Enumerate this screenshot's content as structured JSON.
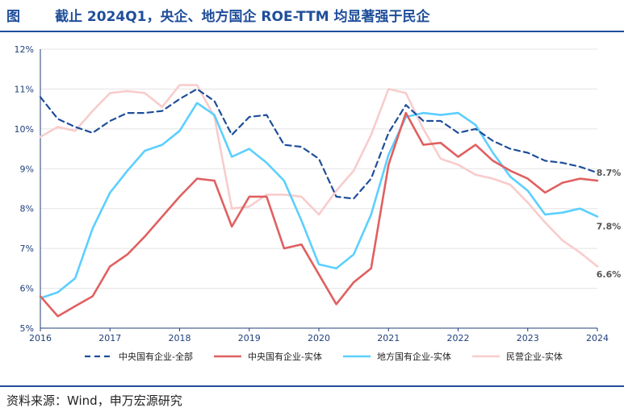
{
  "header": {
    "fig_label": "图",
    "title": "截止 2024Q1，央企、地方国企 ROE-TTM 均显著强于民企"
  },
  "footer": {
    "source": "资料来源：Wind，申万宏源研究"
  },
  "chart_data": {
    "type": "line",
    "title": "截止 2024Q1，央企、地方国企 ROE-TTM 均显著强于民企",
    "xlabel": "",
    "ylabel": "",
    "x_ticks": [
      "2016",
      "2017",
      "2018",
      "2019",
      "2020",
      "2021",
      "2022",
      "2023",
      "2024"
    ],
    "xlim": [
      2016.0,
      2024.0
    ],
    "ylim": [
      5,
      12
    ],
    "y_ticks": [
      "5%",
      "6%",
      "7%",
      "8%",
      "9%",
      "10%",
      "11%",
      "12%"
    ],
    "grid": "horizontal",
    "legend_position": "bottom",
    "series": [
      {
        "name": "中央国有企业-全部",
        "color": "#1f4e9a",
        "style": "dashed",
        "x": [
          2016.0,
          2016.25,
          2016.5,
          2016.75,
          2017.0,
          2017.25,
          2017.5,
          2017.75,
          2018.0,
          2018.25,
          2018.5,
          2018.75,
          2019.0,
          2019.25,
          2019.5,
          2019.75,
          2020.0,
          2020.25,
          2020.5,
          2020.75,
          2021.0,
          2021.25,
          2021.5,
          2021.75,
          2022.0,
          2022.25,
          2022.5,
          2022.75,
          2023.0,
          2023.25,
          2023.5,
          2023.75,
          2024.0
        ],
        "y": [
          10.8,
          10.25,
          10.05,
          9.9,
          10.2,
          10.4,
          10.4,
          10.45,
          10.75,
          11.0,
          10.7,
          9.85,
          10.3,
          10.35,
          9.6,
          9.55,
          9.25,
          8.3,
          8.25,
          8.75,
          9.9,
          10.6,
          10.2,
          10.2,
          9.9,
          10.0,
          9.7,
          9.5,
          9.4,
          9.2,
          9.15,
          9.05,
          8.9
        ]
      },
      {
        "name": "中央国有企业-实体",
        "color": "#e06060",
        "style": "solid",
        "x": [
          2016.0,
          2016.25,
          2016.5,
          2016.75,
          2017.0,
          2017.25,
          2017.5,
          2017.75,
          2018.0,
          2018.25,
          2018.5,
          2018.75,
          2019.0,
          2019.25,
          2019.5,
          2019.75,
          2020.0,
          2020.25,
          2020.5,
          2020.75,
          2021.0,
          2021.25,
          2021.5,
          2021.75,
          2022.0,
          2022.25,
          2022.5,
          2022.75,
          2023.0,
          2023.25,
          2023.5,
          2023.75,
          2024.0
        ],
        "y": [
          5.8,
          5.3,
          5.55,
          5.8,
          6.55,
          6.85,
          7.3,
          7.8,
          8.3,
          8.75,
          8.7,
          7.55,
          8.3,
          8.3,
          7.0,
          7.1,
          6.35,
          5.6,
          6.15,
          6.5,
          9.1,
          10.4,
          9.6,
          9.65,
          9.3,
          9.6,
          9.2,
          8.95,
          8.75,
          8.4,
          8.65,
          8.75,
          8.7
        ]
      },
      {
        "name": "地方国有企业-实体",
        "color": "#5ccfff",
        "style": "solid",
        "x": [
          2016.0,
          2016.25,
          2016.5,
          2016.75,
          2017.0,
          2017.25,
          2017.5,
          2017.75,
          2018.0,
          2018.25,
          2018.5,
          2018.75,
          2019.0,
          2019.25,
          2019.5,
          2019.75,
          2020.0,
          2020.25,
          2020.5,
          2020.75,
          2021.0,
          2021.25,
          2021.5,
          2021.75,
          2022.0,
          2022.25,
          2022.5,
          2022.75,
          2023.0,
          2023.25,
          2023.5,
          2023.75,
          2024.0
        ],
        "y": [
          5.75,
          5.9,
          6.25,
          7.5,
          8.4,
          8.95,
          9.45,
          9.6,
          9.95,
          10.65,
          10.35,
          9.3,
          9.5,
          9.15,
          8.7,
          7.7,
          6.6,
          6.5,
          6.85,
          7.85,
          9.35,
          10.3,
          10.4,
          10.35,
          10.4,
          10.1,
          9.4,
          8.8,
          8.45,
          7.85,
          7.9,
          8.0,
          7.8
        ]
      },
      {
        "name": "民营企业-实体",
        "color": "#f8cccc",
        "style": "solid",
        "x": [
          2016.0,
          2016.25,
          2016.5,
          2016.75,
          2017.0,
          2017.25,
          2017.5,
          2017.75,
          2018.0,
          2018.25,
          2018.5,
          2018.75,
          2019.0,
          2019.25,
          2019.5,
          2019.75,
          2020.0,
          2020.25,
          2020.5,
          2020.75,
          2021.0,
          2021.25,
          2021.5,
          2021.75,
          2022.0,
          2022.25,
          2022.5,
          2022.75,
          2023.0,
          2023.25,
          2023.5,
          2023.75,
          2024.0
        ],
        "y": [
          9.8,
          10.05,
          9.95,
          10.45,
          10.9,
          10.95,
          10.9,
          10.55,
          11.1,
          11.1,
          10.3,
          8.0,
          8.05,
          8.35,
          8.35,
          8.3,
          7.85,
          8.45,
          8.95,
          9.85,
          11.0,
          10.9,
          10.0,
          9.25,
          9.1,
          8.85,
          8.75,
          8.6,
          8.15,
          7.65,
          7.2,
          6.9,
          6.55
        ]
      }
    ],
    "annotations": [
      {
        "text": "8.7%",
        "y": 8.7
      },
      {
        "text": "7.8%",
        "y": 7.8
      },
      {
        "text": "6.6%",
        "y": 6.6
      }
    ]
  }
}
